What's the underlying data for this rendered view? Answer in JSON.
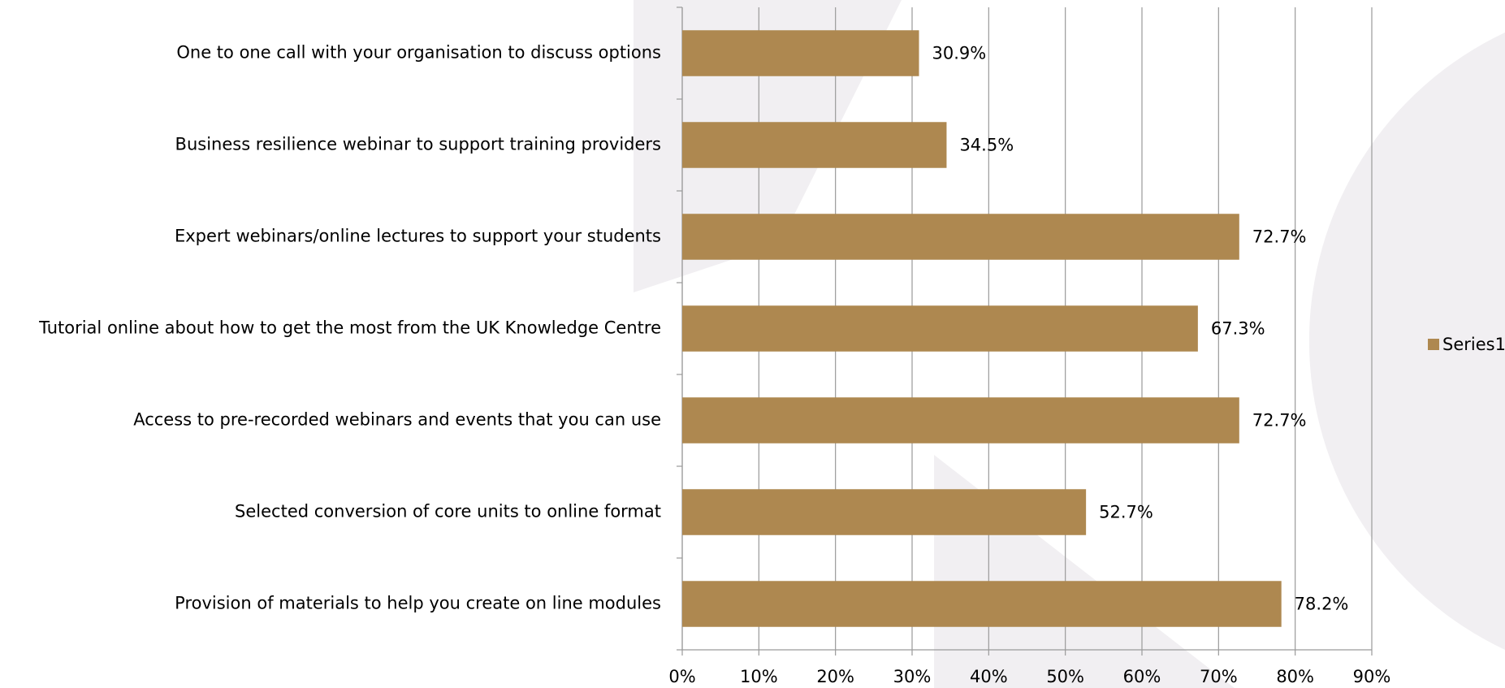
{
  "chart_data": {
    "type": "barh",
    "categories": [
      "One to one call with your organisation to discuss options",
      "Business resilience webinar to support training providers",
      "Expert webinars/online lectures to support your students",
      "Tutorial online about how to get the most from the UK Knowledge Centre",
      "Access to pre-recorded webinars and events that you can use",
      "Selected conversion of core units to online format",
      "Provision of materials to help you create on line modules"
    ],
    "series": [
      {
        "name": "Series1",
        "color": "#ae8850",
        "values": [
          30.9,
          34.5,
          72.7,
          67.3,
          72.7,
          52.7,
          78.2
        ],
        "value_labels": [
          "30.9%",
          "34.5%",
          "72.7%",
          "67.3%",
          "72.7%",
          "52.7%",
          "78.2%"
        ]
      }
    ],
    "xlim": [
      0,
      90
    ],
    "xticks": [
      {
        "value": 0,
        "label": "0%"
      },
      {
        "value": 10,
        "label": "10%"
      },
      {
        "value": 20,
        "label": "20%"
      },
      {
        "value": 30,
        "label": "30%"
      },
      {
        "value": 40,
        "label": "40%"
      },
      {
        "value": 50,
        "label": "50%"
      },
      {
        "value": 60,
        "label": "60%"
      },
      {
        "value": 70,
        "label": "70%"
      },
      {
        "value": 80,
        "label": "80%"
      },
      {
        "value": 90,
        "label": "90%"
      }
    ],
    "grid": true,
    "legend": "right"
  }
}
